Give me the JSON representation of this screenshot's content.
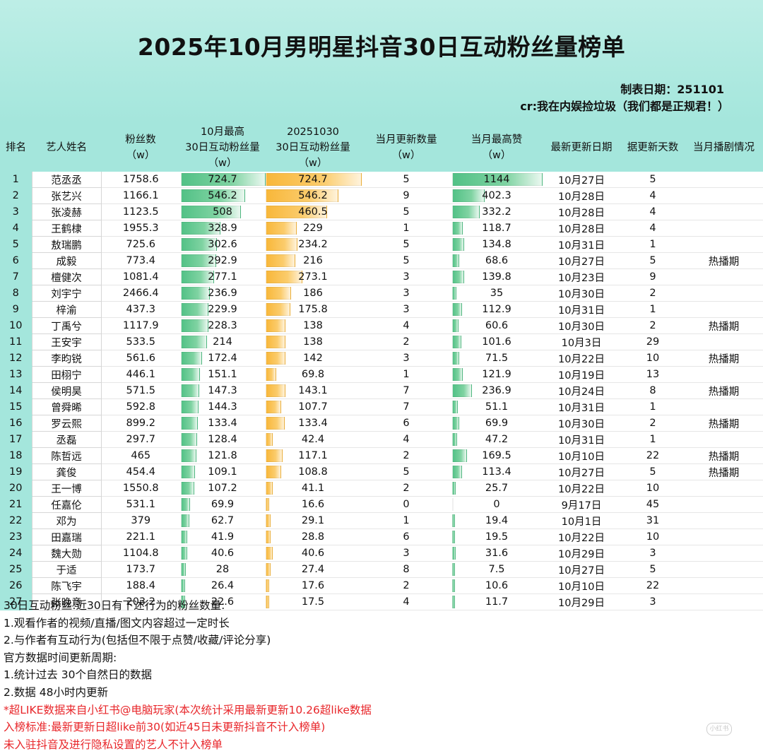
{
  "header": {
    "title": "2025年10月男明星抖音30日互动粉丝量榜单",
    "date_line": "制表日期：251101",
    "credit_line": "cr:我在内娱捡垃圾（我们都是正规君！）"
  },
  "colors": {
    "header_bg": "#a4e6dc",
    "bar_green": "#52c186",
    "bar_orange": "#f8b73a",
    "note_red": "#e8262a"
  },
  "table": {
    "headers": {
      "rank": "排名",
      "name": "艺人姓名",
      "fans_1": "粉丝数",
      "fans_2": "（w）",
      "max30_1": "10月最高",
      "max30_2": "30日互动粉丝量",
      "max30_3": "（w）",
      "d1030_1": "20251030",
      "d1030_2": "30日互动粉丝量",
      "d1030_3": "（w）",
      "updates_1": "当月更新数量",
      "updates_2": "（w）",
      "likes_1": "当月最高赞",
      "likes_2": "（w）",
      "last_update": "最新更新日期",
      "days": "据更新天数",
      "drama": "当月播剧情况"
    },
    "rows": [
      {
        "rank": "1",
        "name": "范丞丞",
        "fans": "1758.6",
        "max30": "724.7",
        "d1030": "724.7",
        "updates": "5",
        "likes": "1144",
        "last_update": "10月27日",
        "days": "5",
        "drama": ""
      },
      {
        "rank": "2",
        "name": "张艺兴",
        "fans": "1166.1",
        "max30": "546.2",
        "d1030": "546.2",
        "updates": "9",
        "likes": "402.3",
        "last_update": "10月28日",
        "days": "4",
        "drama": ""
      },
      {
        "rank": "3",
        "name": "张凌赫",
        "fans": "1123.5",
        "max30": "508",
        "d1030": "460.5",
        "updates": "5",
        "likes": "332.2",
        "last_update": "10月28日",
        "days": "4",
        "drama": ""
      },
      {
        "rank": "4",
        "name": "王鹤棣",
        "fans": "1955.3",
        "max30": "328.9",
        "d1030": "229",
        "updates": "1",
        "likes": "118.7",
        "last_update": "10月28日",
        "days": "4",
        "drama": ""
      },
      {
        "rank": "5",
        "name": "敖瑞鹏",
        "fans": "725.6",
        "max30": "302.6",
        "d1030": "234.2",
        "updates": "5",
        "likes": "134.8",
        "last_update": "10月31日",
        "days": "1",
        "drama": ""
      },
      {
        "rank": "6",
        "name": "成毅",
        "fans": "773.4",
        "max30": "292.9",
        "d1030": "216",
        "updates": "5",
        "likes": "68.6",
        "last_update": "10月27日",
        "days": "5",
        "drama": "热播期"
      },
      {
        "rank": "7",
        "name": "檀健次",
        "fans": "1081.4",
        "max30": "277.1",
        "d1030": "273.1",
        "updates": "3",
        "likes": "139.8",
        "last_update": "10月23日",
        "days": "9",
        "drama": ""
      },
      {
        "rank": "8",
        "name": "刘宇宁",
        "fans": "2466.4",
        "max30": "236.9",
        "d1030": "186",
        "updates": "3",
        "likes": "35",
        "last_update": "10月30日",
        "days": "2",
        "drama": ""
      },
      {
        "rank": "9",
        "name": "梓渝",
        "fans": "437.3",
        "max30": "229.9",
        "d1030": "175.8",
        "updates": "3",
        "likes": "112.9",
        "last_update": "10月31日",
        "days": "1",
        "drama": ""
      },
      {
        "rank": "10",
        "name": "丁禹兮",
        "fans": "1117.9",
        "max30": "228.3",
        "d1030": "138",
        "updates": "4",
        "likes": "60.6",
        "last_update": "10月30日",
        "days": "2",
        "drama": "热播期"
      },
      {
        "rank": "11",
        "name": "王安宇",
        "fans": "533.5",
        "max30": "214",
        "d1030": "138",
        "updates": "2",
        "likes": "101.6",
        "last_update": "10月3日",
        "days": "29",
        "drama": ""
      },
      {
        "rank": "12",
        "name": "李昀锐",
        "fans": "561.6",
        "max30": "172.4",
        "d1030": "142",
        "updates": "3",
        "likes": "71.5",
        "last_update": "10月22日",
        "days": "10",
        "drama": "热播期"
      },
      {
        "rank": "13",
        "name": "田栩宁",
        "fans": "446.1",
        "max30": "151.1",
        "d1030": "69.8",
        "updates": "1",
        "likes": "121.9",
        "last_update": "10月19日",
        "days": "13",
        "drama": ""
      },
      {
        "rank": "14",
        "name": "侯明昊",
        "fans": "571.5",
        "max30": "147.3",
        "d1030": "143.1",
        "updates": "7",
        "likes": "236.9",
        "last_update": "10月24日",
        "days": "8",
        "drama": "热播期"
      },
      {
        "rank": "15",
        "name": "曾舜晞",
        "fans": "592.8",
        "max30": "144.3",
        "d1030": "107.7",
        "updates": "7",
        "likes": "51.1",
        "last_update": "10月31日",
        "days": "1",
        "drama": ""
      },
      {
        "rank": "16",
        "name": "罗云熙",
        "fans": "899.2",
        "max30": "133.4",
        "d1030": "133.4",
        "updates": "6",
        "likes": "69.9",
        "last_update": "10月30日",
        "days": "2",
        "drama": "热播期"
      },
      {
        "rank": "17",
        "name": "丞磊",
        "fans": "297.7",
        "max30": "128.4",
        "d1030": "42.4",
        "updates": "4",
        "likes": "47.2",
        "last_update": "10月31日",
        "days": "1",
        "drama": ""
      },
      {
        "rank": "18",
        "name": "陈哲远",
        "fans": "465",
        "max30": "121.8",
        "d1030": "117.1",
        "updates": "2",
        "likes": "169.5",
        "last_update": "10月10日",
        "days": "22",
        "drama": "热播期"
      },
      {
        "rank": "19",
        "name": "龚俊",
        "fans": "454.4",
        "max30": "109.1",
        "d1030": "108.8",
        "updates": "5",
        "likes": "113.4",
        "last_update": "10月27日",
        "days": "5",
        "drama": "热播期"
      },
      {
        "rank": "20",
        "name": "王一博",
        "fans": "1550.8",
        "max30": "107.2",
        "d1030": "41.1",
        "updates": "2",
        "likes": "25.7",
        "last_update": "10月22日",
        "days": "10",
        "drama": ""
      },
      {
        "rank": "21",
        "name": "任嘉伦",
        "fans": "531.1",
        "max30": "69.9",
        "d1030": "16.6",
        "updates": "0",
        "likes": "0",
        "last_update": "9月17日",
        "days": "45",
        "drama": ""
      },
      {
        "rank": "22",
        "name": "邓为",
        "fans": "379",
        "max30": "62.7",
        "d1030": "29.1",
        "updates": "1",
        "likes": "19.4",
        "last_update": "10月1日",
        "days": "31",
        "drama": ""
      },
      {
        "rank": "23",
        "name": "田嘉瑞",
        "fans": "221.1",
        "max30": "41.9",
        "d1030": "28.8",
        "updates": "6",
        "likes": "19.5",
        "last_update": "10月22日",
        "days": "10",
        "drama": ""
      },
      {
        "rank": "24",
        "name": "魏大勋",
        "fans": "1104.8",
        "max30": "40.6",
        "d1030": "40.6",
        "updates": "3",
        "likes": "31.6",
        "last_update": "10月29日",
        "days": "3",
        "drama": ""
      },
      {
        "rank": "25",
        "name": "于适",
        "fans": "173.7",
        "max30": "28",
        "d1030": "27.4",
        "updates": "8",
        "likes": "7.5",
        "last_update": "10月27日",
        "days": "5",
        "drama": ""
      },
      {
        "rank": "26",
        "name": "陈飞宇",
        "fans": "188.4",
        "max30": "26.4",
        "d1030": "17.6",
        "updates": "2",
        "likes": "10.6",
        "last_update": "10月10日",
        "days": "22",
        "drama": ""
      },
      {
        "rank": "27",
        "name": "张晚意",
        "fans": "203.2",
        "max30": "22.6",
        "d1030": "17.5",
        "updates": "4",
        "likes": "11.7",
        "last_update": "10月29日",
        "days": "3",
        "drama": ""
      }
    ]
  },
  "notes": {
    "lines": [
      "30日互动粉丝:近30日有下述行为的粉丝数量:",
      "1.观看作者的视频/直播/图文内容超过一定时长",
      "2.与作者有互动行为(包括但不限于点赞/收藏/评论分享)",
      "官方数据时间更新周期:",
      "1.统计过去 30个自然日的数据",
      "2.数据 48小时内更新"
    ],
    "red_lines": [
      "*超LIKE数据来自小红书@电脑玩家(本次统计采用最新更新10.26超like数据",
      "入榜标准:最新更新日超like前30(如近45日未更新抖音不计入榜单)",
      "未入驻抖音及进行隐私设置的艺人不计入榜单"
    ]
  },
  "watermark": "小红书"
}
